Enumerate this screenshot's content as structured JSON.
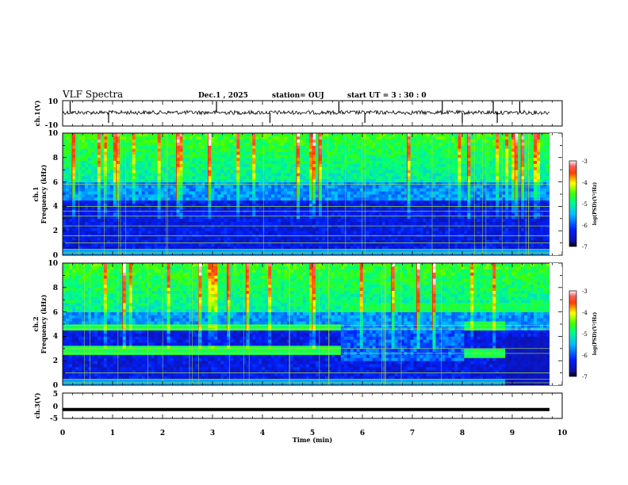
{
  "header": {
    "title": "VLF Spectra",
    "date": "Dec.1 , 2025",
    "station": "station= OUJ",
    "start": "start UT =  3 : 30 : 0"
  },
  "chart_data": [
    {
      "type": "line",
      "name": "ch1-waveform",
      "ylabel": "ch.1(V)",
      "ylim": [
        -10,
        10
      ],
      "yticks": [
        10,
        -10
      ],
      "baseline": 0,
      "spikes_min": [
        0.15,
        0.92,
        3.08,
        4.15,
        5.53,
        6.05,
        7.6,
        8.0,
        8.62,
        8.7,
        9.15
      ],
      "xlim": [
        0,
        10
      ]
    },
    {
      "type": "heatmap",
      "name": "ch1-spectrogram",
      "ylabel_line1": "ch.1",
      "ylabel_line2": "Frequency (kHz)",
      "ylim": [
        0,
        10
      ],
      "yticks": [
        0,
        2,
        4,
        6,
        8,
        10
      ],
      "xlim": [
        0,
        9.8
      ],
      "colorbar": {
        "label": "log(PSD)(V²/Hz)",
        "ticks": [
          "-3",
          "-4",
          "-5",
          "-6",
          "-7"
        ],
        "range": [
          -7,
          -3
        ]
      },
      "horizontal_lines_khz": [
        0.2,
        0.5,
        1.0,
        1.6,
        2.4,
        3.2,
        3.6,
        4.0,
        5.8
      ]
    },
    {
      "type": "heatmap",
      "name": "ch2-spectrogram",
      "ylabel_line1": "ch.2",
      "ylabel_line2": "Frequency (kHz)",
      "ylim": [
        0,
        10
      ],
      "yticks": [
        0,
        2,
        4,
        6,
        8,
        10
      ],
      "xlim": [
        0,
        9.8
      ],
      "colorbar": {
        "label": "log(PSD)(V²/Hz)",
        "ticks": [
          "-3",
          "-4",
          "-5",
          "-6",
          "-7"
        ],
        "range": [
          -7,
          -3
        ]
      },
      "bands_khz": [
        {
          "t0": 0,
          "t1": 5.6,
          "f0": 4.4,
          "f1": 5.0
        },
        {
          "t0": 0,
          "t1": 5.6,
          "f0": 2.6,
          "f1": 3.2
        },
        {
          "t0": 5.6,
          "t1": 9.8,
          "f0": 6.0,
          "f1": 6.8
        },
        {
          "t0": 8.1,
          "t1": 8.9,
          "f0": 4.6,
          "f1": 5.2
        },
        {
          "t0": 8.1,
          "t1": 8.9,
          "f0": 2.2,
          "f1": 3.0
        }
      ]
    },
    {
      "type": "line",
      "name": "ch3-waveform",
      "ylabel": "ch.3(V)",
      "ylim": [
        -5,
        5
      ],
      "yticks": [
        5,
        0,
        -5
      ],
      "value": -1.5,
      "xlim": [
        0,
        9.8
      ]
    }
  ],
  "xaxis": {
    "label": "Time (min)",
    "ticks": [
      "0",
      "1",
      "2",
      "3",
      "4",
      "5",
      "6",
      "7",
      "8",
      "9",
      "10"
    ]
  }
}
